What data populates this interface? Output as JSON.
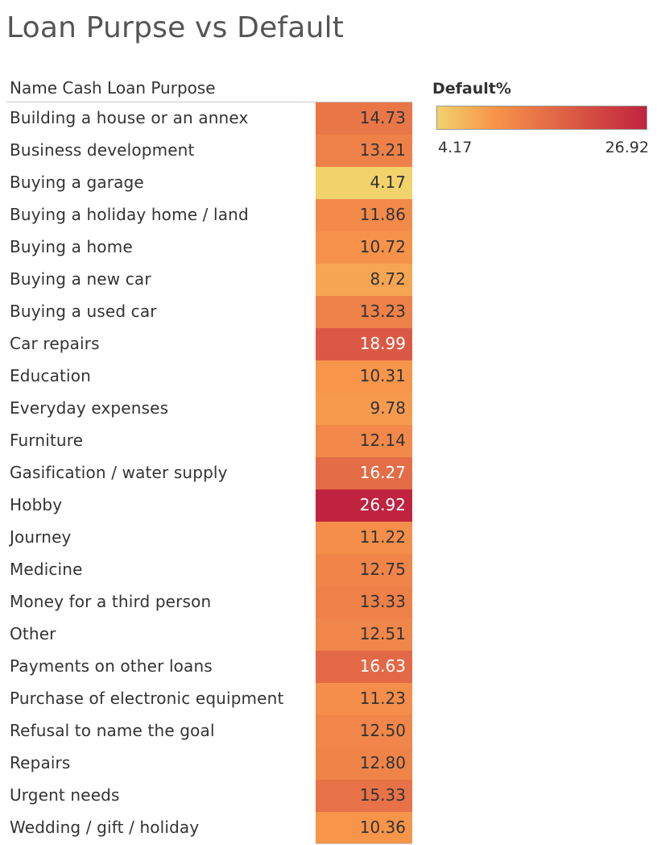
{
  "colors": {
    "low": "#f2d26b",
    "mid": "#f7934a",
    "high": "#c0233f"
  },
  "legend": {
    "title": "Default%",
    "min_label": "4.17",
    "max_label": "26.92"
  },
  "chart_data": {
    "type": "heatmap",
    "title": "Loan Purpse vs Default",
    "column_header": "Name Cash Loan Purpose",
    "measure": "Default%",
    "color_range": [
      4.17,
      26.92
    ],
    "rows": [
      {
        "label": "Building a house or an annex",
        "value": "14.73"
      },
      {
        "label": "Business development",
        "value": "13.21"
      },
      {
        "label": "Buying a garage",
        "value": "4.17"
      },
      {
        "label": "Buying a holiday home / land",
        "value": "11.86"
      },
      {
        "label": "Buying a home",
        "value": "10.72"
      },
      {
        "label": "Buying a new car",
        "value": "8.72"
      },
      {
        "label": "Buying a used car",
        "value": "13.23"
      },
      {
        "label": "Car repairs",
        "value": "18.99"
      },
      {
        "label": "Education",
        "value": "10.31"
      },
      {
        "label": "Everyday expenses",
        "value": "9.78"
      },
      {
        "label": "Furniture",
        "value": "12.14"
      },
      {
        "label": "Gasification / water supply",
        "value": "16.27"
      },
      {
        "label": "Hobby",
        "value": "26.92"
      },
      {
        "label": "Journey",
        "value": "11.22"
      },
      {
        "label": "Medicine",
        "value": "12.75"
      },
      {
        "label": "Money for a third person",
        "value": "13.33"
      },
      {
        "label": "Other",
        "value": "12.51"
      },
      {
        "label": "Payments on other loans",
        "value": "16.63"
      },
      {
        "label": "Purchase of electronic equipment",
        "value": "11.23"
      },
      {
        "label": "Refusal to name the goal",
        "value": "12.50"
      },
      {
        "label": "Repairs",
        "value": "12.80"
      },
      {
        "label": "Urgent needs",
        "value": "15.33"
      },
      {
        "label": "Wedding / gift / holiday",
        "value": "10.36"
      }
    ]
  }
}
